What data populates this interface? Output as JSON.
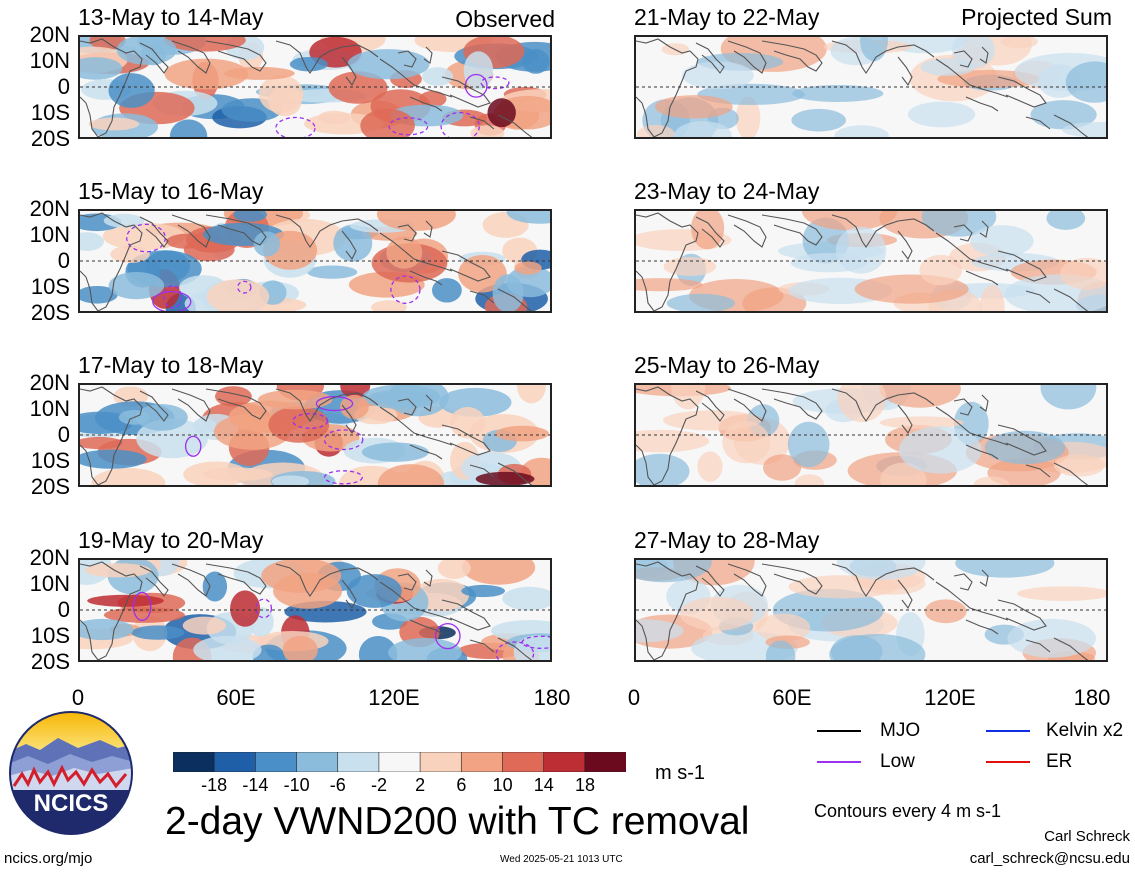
{
  "header": {
    "observed_label": "Observed",
    "projected_label": "Projected Sum"
  },
  "panels": [
    {
      "title": "13-May to 14-May",
      "seed": 1
    },
    {
      "title": "15-May to 16-May",
      "seed": 2
    },
    {
      "title": "17-May to 18-May",
      "seed": 3
    },
    {
      "title": "19-May to 20-May",
      "seed": 4
    },
    {
      "title": "21-May to 22-May",
      "seed": 5
    },
    {
      "title": "23-May to 24-May",
      "seed": 6
    },
    {
      "title": "25-May to 26-May",
      "seed": 7
    },
    {
      "title": "27-May to 28-May",
      "seed": 8
    }
  ],
  "lat_labels": [
    "20N",
    "10N",
    "0",
    "10S",
    "20S"
  ],
  "lon_labels": [
    "0",
    "60E",
    "120E",
    "180"
  ],
  "colorbar": {
    "colors": [
      "#0b2f5e",
      "#1f5fa8",
      "#4a8fc7",
      "#8bbcdc",
      "#c9e0ef",
      "#f7f7f7",
      "#f9d2bd",
      "#f1a383",
      "#de6a57",
      "#bd2d34",
      "#6b0a1e"
    ],
    "labels": [
      "-18",
      "-14",
      "-10",
      "-6",
      "-2",
      "2",
      "6",
      "10",
      "14",
      "18"
    ],
    "units": "m s-1"
  },
  "legend": {
    "items": [
      {
        "label": "MJO",
        "color": "#000000"
      },
      {
        "label": "Kelvin x2",
        "color": "#1030e0"
      },
      {
        "label": "Low",
        "color": "#9b30f0"
      },
      {
        "label": "ER",
        "color": "#e01010"
      }
    ],
    "contours_note": "Contours every 4 m s-1"
  },
  "title": "2-day VWND200 with TC removal",
  "logo_text": "NCICS",
  "footer": {
    "url": "ncics.org/mjo",
    "timestamp": "Wed 2025-05-21 1013 UTC",
    "author": "Carl Schreck",
    "email": "carl_schreck@ncsu.edu"
  }
}
